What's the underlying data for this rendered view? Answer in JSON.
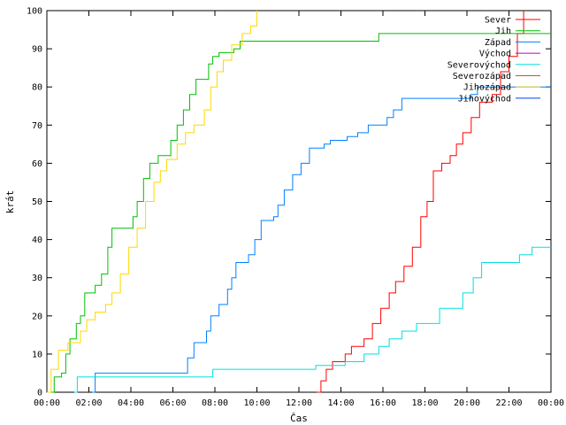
{
  "chart_data": {
    "type": "line",
    "title": "",
    "xlabel": "Čas",
    "ylabel": "krát",
    "ylim": [
      0,
      100
    ],
    "xlim_hours": [
      0,
      24
    ],
    "x_tick_labels": [
      "00:00",
      "02:00",
      "04:00",
      "06:00",
      "08:00",
      "10:00",
      "12:00",
      "14:00",
      "16:00",
      "18:00",
      "20:00",
      "22:00",
      "00:00"
    ],
    "y_tick_labels": [
      "0",
      "10",
      "20",
      "30",
      "40",
      "50",
      "60",
      "70",
      "80",
      "90",
      "100"
    ],
    "legend_position": "top-right",
    "grid": false,
    "series": [
      {
        "name": "Sever",
        "color": "#ff0000",
        "step": true,
        "points": [
          [
            12.85,
            0
          ],
          [
            13.05,
            3
          ],
          [
            13.3,
            6
          ],
          [
            13.6,
            8
          ],
          [
            14.2,
            10
          ],
          [
            14.5,
            12
          ],
          [
            15.1,
            14
          ],
          [
            15.5,
            18
          ],
          [
            15.9,
            22
          ],
          [
            16.3,
            26
          ],
          [
            16.6,
            29
          ],
          [
            17.0,
            33
          ],
          [
            17.4,
            38
          ],
          [
            17.8,
            46
          ],
          [
            18.1,
            50
          ],
          [
            18.4,
            58
          ],
          [
            18.8,
            60
          ],
          [
            19.2,
            62
          ],
          [
            19.5,
            65
          ],
          [
            19.8,
            68
          ],
          [
            20.2,
            72
          ],
          [
            20.6,
            76
          ],
          [
            21.2,
            78
          ],
          [
            21.6,
            84
          ],
          [
            22.0,
            88
          ],
          [
            22.4,
            94
          ],
          [
            22.7,
            100
          ]
        ]
      },
      {
        "name": "Jih",
        "color": "#00c000",
        "step": true,
        "points": [
          [
            0.2,
            0
          ],
          [
            0.35,
            4
          ],
          [
            0.7,
            5
          ],
          [
            0.9,
            10
          ],
          [
            1.1,
            14
          ],
          [
            1.4,
            18
          ],
          [
            1.6,
            20
          ],
          [
            1.8,
            26
          ],
          [
            2.3,
            28
          ],
          [
            2.6,
            31
          ],
          [
            2.9,
            38
          ],
          [
            3.1,
            43
          ],
          [
            3.9,
            43
          ],
          [
            4.1,
            46
          ],
          [
            4.3,
            50
          ],
          [
            4.6,
            56
          ],
          [
            4.9,
            60
          ],
          [
            5.3,
            62
          ],
          [
            5.6,
            62
          ],
          [
            5.9,
            66
          ],
          [
            6.2,
            70
          ],
          [
            6.5,
            74
          ],
          [
            6.8,
            78
          ],
          [
            7.1,
            82
          ],
          [
            7.5,
            82
          ],
          [
            7.7,
            86
          ],
          [
            7.9,
            88
          ],
          [
            8.2,
            89
          ],
          [
            8.6,
            89
          ],
          [
            8.9,
            90
          ],
          [
            9.2,
            92
          ],
          [
            15.8,
            94
          ],
          [
            24,
            94
          ]
        ]
      },
      {
        "name": "Západ",
        "color": "#0080ff",
        "step": true,
        "points": [
          [
            2.15,
            0
          ],
          [
            2.3,
            5
          ],
          [
            6.6,
            5
          ],
          [
            6.7,
            9
          ],
          [
            7.0,
            13
          ],
          [
            7.6,
            16
          ],
          [
            7.8,
            20
          ],
          [
            8.2,
            23
          ],
          [
            8.6,
            27
          ],
          [
            8.8,
            30
          ],
          [
            9.0,
            34
          ],
          [
            9.6,
            36
          ],
          [
            9.9,
            40
          ],
          [
            10.2,
            45
          ],
          [
            10.8,
            46
          ],
          [
            11.0,
            49
          ],
          [
            11.3,
            53
          ],
          [
            11.7,
            57
          ],
          [
            12.1,
            60
          ],
          [
            12.5,
            64
          ],
          [
            13.2,
            65
          ],
          [
            13.5,
            66
          ],
          [
            14.3,
            67
          ],
          [
            14.8,
            68
          ],
          [
            15.3,
            70
          ],
          [
            16.2,
            72
          ],
          [
            16.5,
            74
          ],
          [
            16.9,
            77
          ],
          [
            20.2,
            78
          ],
          [
            20.5,
            80
          ],
          [
            24,
            80
          ]
        ]
      },
      {
        "name": "Východ",
        "color": "#c000c0",
        "step": true,
        "points": []
      },
      {
        "name": "Severovýchod",
        "color": "#00e0e0",
        "step": true,
        "points": [
          [
            1.3,
            0
          ],
          [
            1.45,
            4
          ],
          [
            7.9,
            6
          ],
          [
            12.8,
            7
          ],
          [
            14.2,
            8
          ],
          [
            15.1,
            10
          ],
          [
            15.8,
            12
          ],
          [
            16.3,
            14
          ],
          [
            16.9,
            16
          ],
          [
            17.6,
            18
          ],
          [
            18.7,
            22
          ],
          [
            19.8,
            26
          ],
          [
            20.3,
            30
          ],
          [
            20.7,
            34
          ],
          [
            22.5,
            36
          ],
          [
            23.1,
            38
          ],
          [
            24,
            38
          ]
        ]
      },
      {
        "name": "Severozápad",
        "color": "#c06000",
        "step": true,
        "points": []
      },
      {
        "name": "Jihozápad",
        "color": "#ffd800",
        "step": true,
        "points": [
          [
            0,
            0
          ],
          [
            0.2,
            6
          ],
          [
            0.55,
            11
          ],
          [
            1.0,
            13
          ],
          [
            1.6,
            16
          ],
          [
            1.9,
            19
          ],
          [
            2.3,
            21
          ],
          [
            2.8,
            23
          ],
          [
            3.1,
            26
          ],
          [
            3.5,
            31
          ],
          [
            3.9,
            38
          ],
          [
            4.3,
            43
          ],
          [
            4.7,
            50
          ],
          [
            5.1,
            55
          ],
          [
            5.4,
            58
          ],
          [
            5.7,
            61
          ],
          [
            6.2,
            65
          ],
          [
            6.6,
            68
          ],
          [
            7.0,
            70
          ],
          [
            7.5,
            74
          ],
          [
            7.8,
            80
          ],
          [
            8.1,
            84
          ],
          [
            8.4,
            87
          ],
          [
            8.8,
            91
          ],
          [
            9.3,
            94
          ],
          [
            9.7,
            96
          ],
          [
            10.0,
            100
          ]
        ]
      },
      {
        "name": "Jihovýchod",
        "color": "#0040ff",
        "step": true,
        "points": []
      }
    ]
  }
}
